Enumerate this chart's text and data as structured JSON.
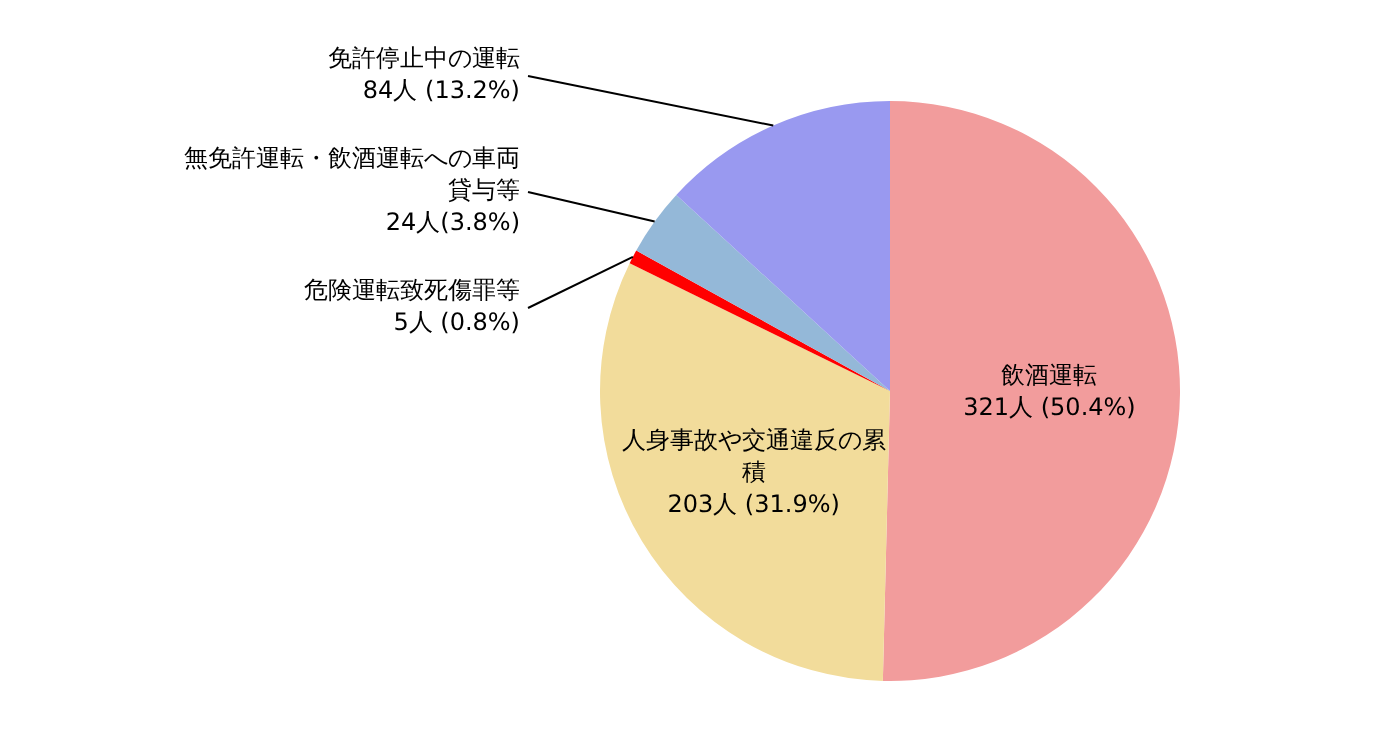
{
  "chart_data": {
    "type": "pie",
    "categories": [
      "飲酒運転",
      "人身事故や交通違反の累積",
      "危険運転致死傷罪等",
      "無免許運転・飲酒運転への車両貸与等",
      "免許停止中の運転"
    ],
    "values": [
      321,
      203,
      5,
      24,
      84
    ],
    "colors": [
      "#f29c9c",
      "#f2dc9b",
      "#ff0000",
      "#94b8d8",
      "#9999f0"
    ],
    "value_labels": [
      "321人 (50.4%)",
      "203人 (31.9%)",
      "5人 (0.8%)",
      "24人(3.8%)",
      "84人 (13.2%)"
    ]
  }
}
